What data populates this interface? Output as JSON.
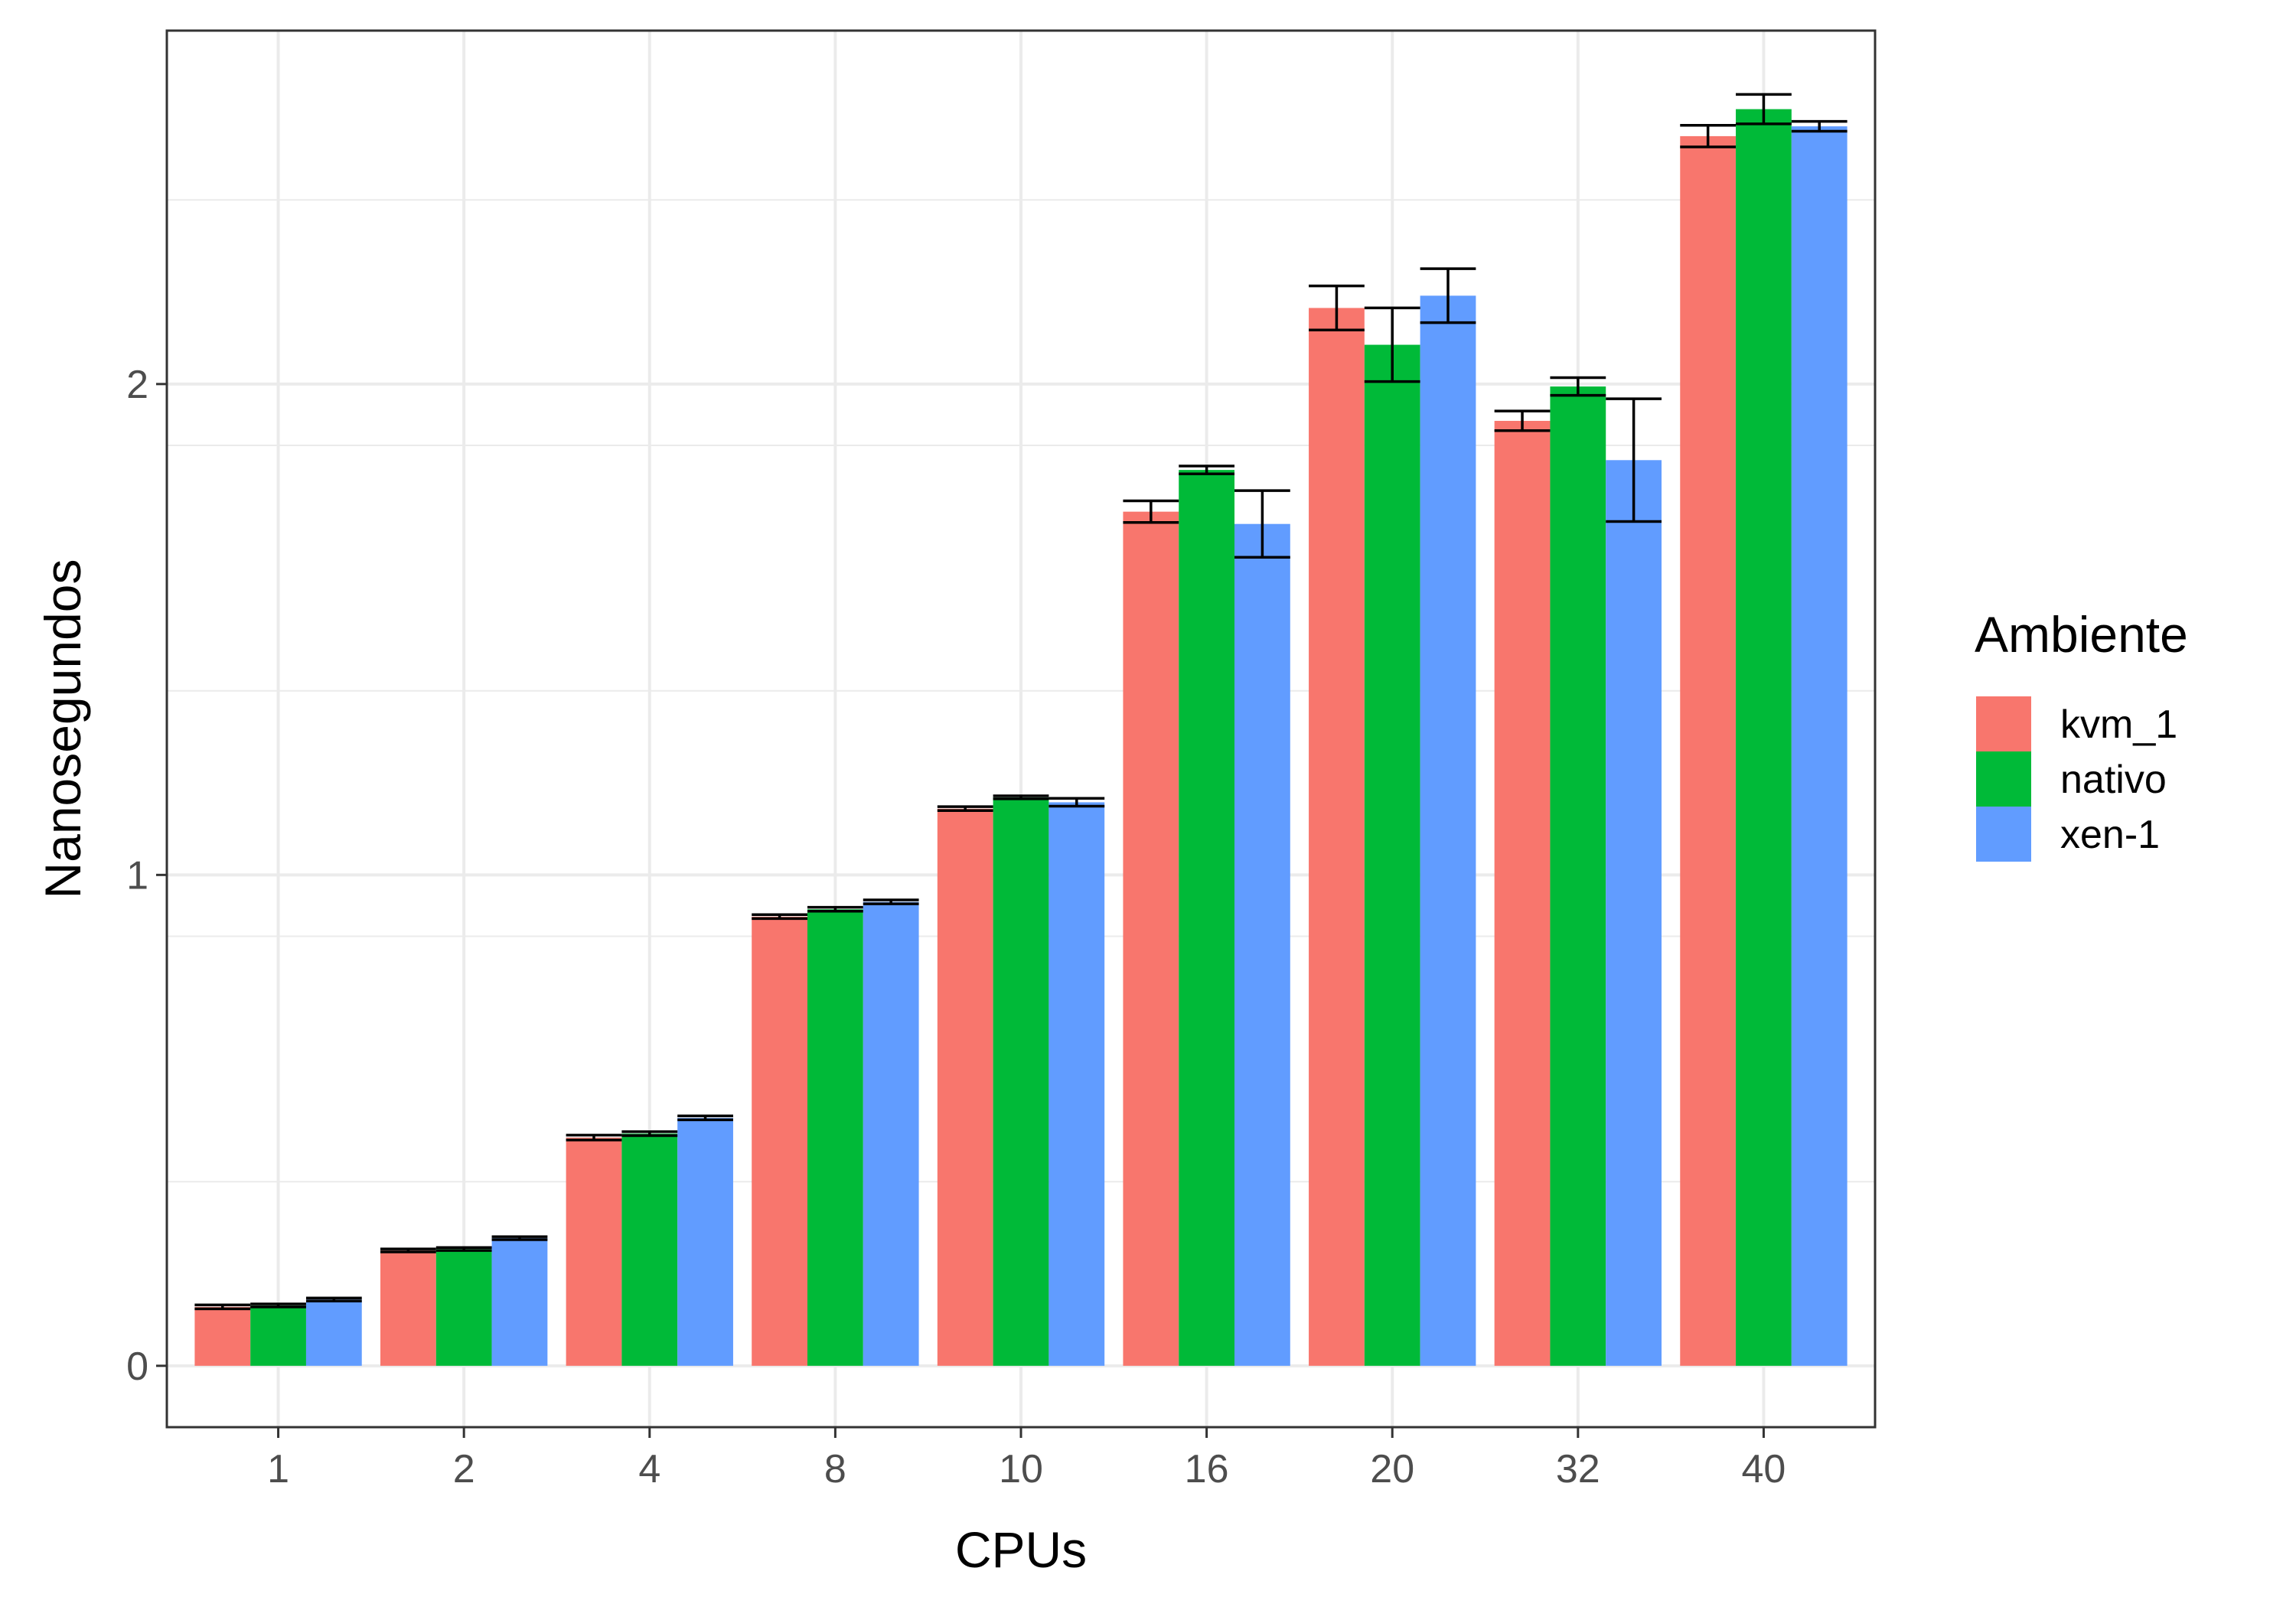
{
  "chart_data": {
    "type": "bar",
    "xlabel": "CPUs",
    "ylabel": "Nanosegundos",
    "ylim": [
      -0.125,
      2.72
    ],
    "yticks": [
      0,
      1,
      2
    ],
    "grid": true,
    "legend_position": "right",
    "legend_title": "Ambiente",
    "categories": [
      "1",
      "2",
      "4",
      "8",
      "10",
      "16",
      "20",
      "32",
      "40"
    ],
    "series": [
      {
        "name": "kvm_1",
        "color": "#F8766D",
        "values": [
          0.12,
          0.235,
          0.465,
          0.915,
          1.135,
          1.74,
          2.155,
          1.925,
          2.505
        ],
        "errors": [
          0.004,
          0.003,
          0.005,
          0.004,
          0.004,
          0.022,
          0.045,
          0.02,
          0.022
        ]
      },
      {
        "name": "nativo",
        "color": "#00BA38",
        "values": [
          0.123,
          0.238,
          0.473,
          0.93,
          1.158,
          1.825,
          2.08,
          1.995,
          2.56
        ],
        "errors": [
          0.003,
          0.003,
          0.004,
          0.004,
          0.003,
          0.008,
          0.075,
          0.018,
          0.03
        ]
      },
      {
        "name": "xen-1",
        "color": "#619CFF",
        "values": [
          0.135,
          0.26,
          0.505,
          0.945,
          1.148,
          1.715,
          2.18,
          1.845,
          2.525
        ],
        "errors": [
          0.003,
          0.003,
          0.004,
          0.004,
          0.008,
          0.068,
          0.055,
          0.125,
          0.01
        ]
      }
    ]
  }
}
